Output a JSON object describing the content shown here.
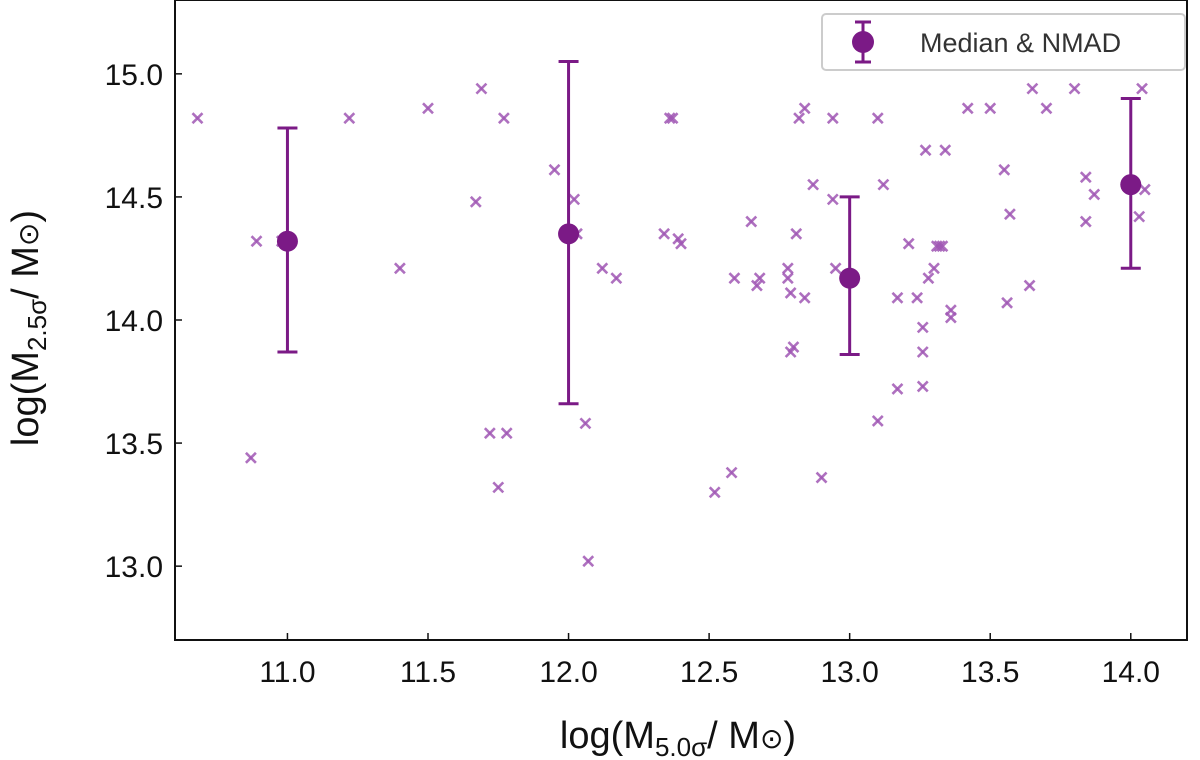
{
  "chart_data": {
    "type": "scatter",
    "title": "",
    "xlabel": {
      "base": "log(M",
      "sub": "5.0σ",
      "tail": "/ M",
      "sun": "⊙",
      "close": ")"
    },
    "ylabel": {
      "base": "log(M",
      "sub": "2.5σ",
      "tail": "/ M",
      "sun": "⊙",
      "close": ")"
    },
    "xlim": [
      10.6,
      14.2
    ],
    "ylim": [
      12.7,
      15.3
    ],
    "xticks": [
      11.0,
      11.5,
      12.0,
      12.5,
      13.0,
      13.5,
      14.0
    ],
    "xtick_labels": [
      "11.0",
      "11.5",
      "12.0",
      "12.5",
      "13.0",
      "13.5",
      "14.0"
    ],
    "yticks": [
      13.0,
      13.5,
      14.0,
      14.5,
      15.0
    ],
    "ytick_labels": [
      "13.0",
      "13.5",
      "14.0",
      "14.5",
      "15.0"
    ],
    "grid": false,
    "legend": {
      "position": "top-right",
      "label": "Median & NMAD"
    },
    "colors": {
      "marker": "#a057b4",
      "summary": "#7b1a86",
      "frame": "#111111"
    },
    "series": [
      {
        "name": "individual",
        "marker": "x",
        "points": [
          [
            10.68,
            14.82
          ],
          [
            10.87,
            13.44
          ],
          [
            10.89,
            14.32
          ],
          [
            10.98,
            14.32
          ],
          [
            11.22,
            14.82
          ],
          [
            11.4,
            14.21
          ],
          [
            11.5,
            14.86
          ],
          [
            11.67,
            14.48
          ],
          [
            11.69,
            14.94
          ],
          [
            11.72,
            13.54
          ],
          [
            11.75,
            13.32
          ],
          [
            11.77,
            14.82
          ],
          [
            11.78,
            13.54
          ],
          [
            11.95,
            14.61
          ],
          [
            12.02,
            14.49
          ],
          [
            12.03,
            14.35
          ],
          [
            12.06,
            13.58
          ],
          [
            12.07,
            13.02
          ],
          [
            12.12,
            14.21
          ],
          [
            12.17,
            14.17
          ],
          [
            12.34,
            14.35
          ],
          [
            12.36,
            14.82
          ],
          [
            12.37,
            14.82
          ],
          [
            12.39,
            14.33
          ],
          [
            12.4,
            14.31
          ],
          [
            12.52,
            13.3
          ],
          [
            12.58,
            13.38
          ],
          [
            12.59,
            14.17
          ],
          [
            12.65,
            14.4
          ],
          [
            12.67,
            14.14
          ],
          [
            12.68,
            14.17
          ],
          [
            12.78,
            14.21
          ],
          [
            12.78,
            14.17
          ],
          [
            12.79,
            13.87
          ],
          [
            12.79,
            14.11
          ],
          [
            12.8,
            13.89
          ],
          [
            12.81,
            14.35
          ],
          [
            12.82,
            14.82
          ],
          [
            12.84,
            14.09
          ],
          [
            12.84,
            14.86
          ],
          [
            12.87,
            14.55
          ],
          [
            12.9,
            13.36
          ],
          [
            12.94,
            14.49
          ],
          [
            12.94,
            14.82
          ],
          [
            12.95,
            14.21
          ],
          [
            13.1,
            13.59
          ],
          [
            13.1,
            14.82
          ],
          [
            13.12,
            14.55
          ],
          [
            13.17,
            13.72
          ],
          [
            13.17,
            14.09
          ],
          [
            13.21,
            14.31
          ],
          [
            13.24,
            14.09
          ],
          [
            13.26,
            13.87
          ],
          [
            13.26,
            13.97
          ],
          [
            13.26,
            13.73
          ],
          [
            13.27,
            14.69
          ],
          [
            13.28,
            14.17
          ],
          [
            13.3,
            14.21
          ],
          [
            13.31,
            14.3
          ],
          [
            13.32,
            14.3
          ],
          [
            13.33,
            14.3
          ],
          [
            13.34,
            14.69
          ],
          [
            13.36,
            14.04
          ],
          [
            13.36,
            14.01
          ],
          [
            13.42,
            14.86
          ],
          [
            13.5,
            14.86
          ],
          [
            13.55,
            14.61
          ],
          [
            13.56,
            14.07
          ],
          [
            13.57,
            14.43
          ],
          [
            13.64,
            14.14
          ],
          [
            13.65,
            14.94
          ],
          [
            13.7,
            14.86
          ],
          [
            13.8,
            14.94
          ],
          [
            13.84,
            14.4
          ],
          [
            13.84,
            14.58
          ],
          [
            13.87,
            14.51
          ],
          [
            14.03,
            14.42
          ],
          [
            14.04,
            14.94
          ],
          [
            14.05,
            14.53
          ]
        ]
      },
      {
        "name": "Median & NMAD",
        "marker": "o",
        "points": [
          {
            "x": 11.0,
            "y": 14.32,
            "lo": 13.87,
            "hi": 14.78
          },
          {
            "x": 12.0,
            "y": 14.35,
            "lo": 13.66,
            "hi": 15.05
          },
          {
            "x": 13.0,
            "y": 14.17,
            "lo": 13.86,
            "hi": 14.5
          },
          {
            "x": 14.0,
            "y": 14.55,
            "lo": 14.21,
            "hi": 14.9
          }
        ]
      }
    ]
  }
}
